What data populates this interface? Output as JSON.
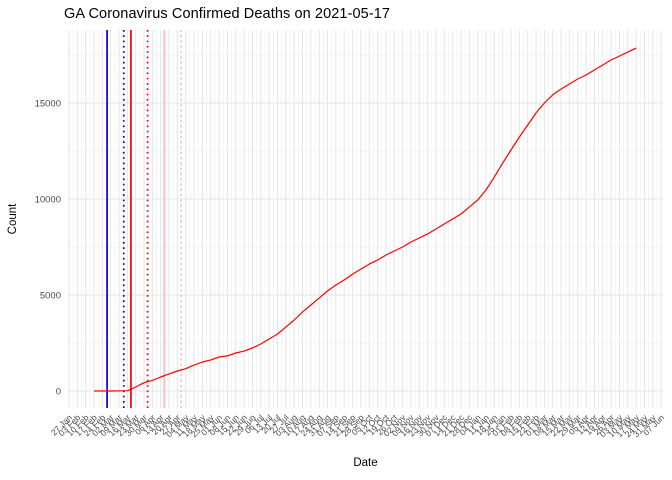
{
  "window": {
    "background": "#FFFFFF"
  },
  "chart_data": {
    "type": "line",
    "title": "GA Coronavirus Confirmed Deaths on 2021-05-17",
    "xlabel": "Date",
    "ylabel": "Count",
    "grid": {
      "major_color": "#E4E4E4",
      "minor_color": "#F0F0F0",
      "grid_on": true
    },
    "legend": "none",
    "ylim": [
      0,
      18800
    ],
    "y_ticks": [
      0,
      5000,
      10000,
      15000
    ],
    "y_tick_labels": [
      "0",
      "5000",
      "10000",
      "15000"
    ],
    "y_minor_ticks": [
      2500,
      7500,
      12500,
      17500
    ],
    "x_tick_interval": "1 week",
    "x_tick_labels": [
      "27 Jan",
      "03 Feb",
      "10 Feb",
      "17 Feb",
      "24 Feb",
      "02 Mar",
      "09 Mar",
      "16 Mar",
      "23 Mar",
      "30 Mar",
      "06 Apr",
      "13 Apr",
      "20 Apr",
      "27 Apr",
      "04 May",
      "11 May",
      "18 May",
      "25 May",
      "01 Jun",
      "08 Jun",
      "15 Jun",
      "22 Jun",
      "29 Jun",
      "06 Jul",
      "13 Jul",
      "20 Jul",
      "27 Jul",
      "03 Aug",
      "10 Aug",
      "17 Aug",
      "24 Aug",
      "31 Aug",
      "07 Sep",
      "14 Sep",
      "21 Sep",
      "28 Sep",
      "05 Oct",
      "12 Oct",
      "19 Oct",
      "26 Oct",
      "02 Nov",
      "09 Nov",
      "16 Nov",
      "23 Nov",
      "30 Nov",
      "07 Dec",
      "14 Dec",
      "21 Dec",
      "28 Dec",
      "04 Jan",
      "11 Jan",
      "18 Jan",
      "25 Jan",
      "01 Feb",
      "08 Feb",
      "15 Feb",
      "22 Feb",
      "01 Mar",
      "08 Mar",
      "15 Mar",
      "22 Mar",
      "29 Mar",
      "05 Apr",
      "12 Apr",
      "19 Apr",
      "26 Apr",
      "03 May",
      "10 May",
      "17 May",
      "24 May",
      "31 May",
      "07 Jun"
    ],
    "x_first_tick_date": "2020-01-27",
    "x_axis_range": [
      "2020-01-27",
      "2021-06-07"
    ],
    "series": [
      {
        "name": "confirmed-deaths",
        "color": "#FF0000",
        "dates": [
          "2020-02-17",
          "2020-02-24",
          "2020-03-02",
          "2020-03-09",
          "2020-03-16",
          "2020-03-23",
          "2020-03-30",
          "2020-04-06",
          "2020-04-13",
          "2020-04-20",
          "2020-04-27",
          "2020-05-04",
          "2020-05-11",
          "2020-05-18",
          "2020-05-25",
          "2020-06-01",
          "2020-06-08",
          "2020-06-15",
          "2020-06-22",
          "2020-06-29",
          "2020-07-06",
          "2020-07-13",
          "2020-07-20",
          "2020-07-27",
          "2020-08-03",
          "2020-08-10",
          "2020-08-17",
          "2020-08-24",
          "2020-08-31",
          "2020-09-07",
          "2020-09-14",
          "2020-09-21",
          "2020-09-28",
          "2020-10-05",
          "2020-10-12",
          "2020-10-19",
          "2020-10-26",
          "2020-11-02",
          "2020-11-09",
          "2020-11-16",
          "2020-11-23",
          "2020-11-30",
          "2020-12-07",
          "2020-12-14",
          "2020-12-21",
          "2020-12-28",
          "2021-01-04",
          "2021-01-11",
          "2021-01-18",
          "2021-01-25",
          "2021-02-01",
          "2021-02-08",
          "2021-02-15",
          "2021-02-22",
          "2021-03-01",
          "2021-03-08",
          "2021-03-15",
          "2021-03-22",
          "2021-03-29",
          "2021-04-05",
          "2021-04-12",
          "2021-04-19",
          "2021-04-26",
          "2021-05-03",
          "2021-05-10",
          "2021-05-17"
        ],
        "values": [
          0,
          0,
          1,
          3,
          14,
          210,
          430,
          550,
          730,
          890,
          1040,
          1160,
          1350,
          1510,
          1620,
          1770,
          1830,
          1980,
          2080,
          2240,
          2450,
          2710,
          2970,
          3330,
          3700,
          4110,
          4480,
          4840,
          5210,
          5520,
          5780,
          6090,
          6350,
          6610,
          6820,
          7080,
          7290,
          7500,
          7760,
          7970,
          8180,
          8440,
          8700,
          8960,
          9220,
          9580,
          9950,
          10470,
          11140,
          11870,
          12550,
          13230,
          13850,
          14480,
          15000,
          15420,
          15730,
          15990,
          16250,
          16460,
          16720,
          16980,
          17240,
          17450,
          17650,
          17860
        ]
      }
    ],
    "vlines": [
      {
        "date": "2020-02-28",
        "color": "#0000EE",
        "style": "solid"
      },
      {
        "date": "2020-03-13",
        "color": "#0000EE",
        "style": "dotted"
      },
      {
        "date": "2020-03-19",
        "color": "#FF0000",
        "style": "solid"
      },
      {
        "date": "2020-04-02",
        "color": "#FF0000",
        "style": "dotted"
      },
      {
        "date": "2020-04-16",
        "color": "#FFB6C1",
        "style": "solid"
      },
      {
        "date": "2020-04-30",
        "color": "#FFB6C1",
        "style": "dotted"
      }
    ],
    "axis_text_color": "#4D4D4D"
  }
}
